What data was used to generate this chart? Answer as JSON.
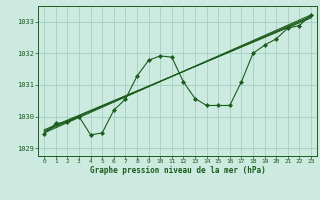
{
  "title": "Graphe pression niveau de la mer (hPa)",
  "bg_color": "#cceae0",
  "line_color": "#1a5c1a",
  "grid_color": "#99ccbb",
  "xlim": [
    -0.5,
    23.5
  ],
  "ylim": [
    1028.75,
    1033.5
  ],
  "yticks": [
    1029,
    1030,
    1031,
    1032,
    1033
  ],
  "xticks": [
    0,
    1,
    2,
    3,
    4,
    5,
    6,
    7,
    8,
    9,
    10,
    11,
    12,
    13,
    14,
    15,
    16,
    17,
    18,
    19,
    20,
    21,
    22,
    23
  ],
  "main_y": [
    1029.45,
    1029.78,
    1029.82,
    1030.0,
    1029.42,
    1029.48,
    1030.2,
    1030.55,
    1031.28,
    1031.78,
    1031.92,
    1031.88,
    1031.1,
    1030.57,
    1030.35,
    1030.35,
    1030.35,
    1031.1,
    1032.0,
    1032.26,
    1032.46,
    1032.8,
    1032.88,
    1033.22
  ],
  "trend_lines": [
    {
      "x0": 0,
      "y0": 1029.48,
      "x1": 23,
      "y1": 1033.22
    },
    {
      "x0": 0,
      "y0": 1029.52,
      "x1": 23,
      "y1": 1033.18
    },
    {
      "x0": 0,
      "y0": 1029.55,
      "x1": 23,
      "y1": 1033.15
    },
    {
      "x0": 0,
      "y0": 1029.58,
      "x1": 23,
      "y1": 1033.12
    }
  ],
  "fig_width": 3.2,
  "fig_height": 2.0,
  "dpi": 100
}
